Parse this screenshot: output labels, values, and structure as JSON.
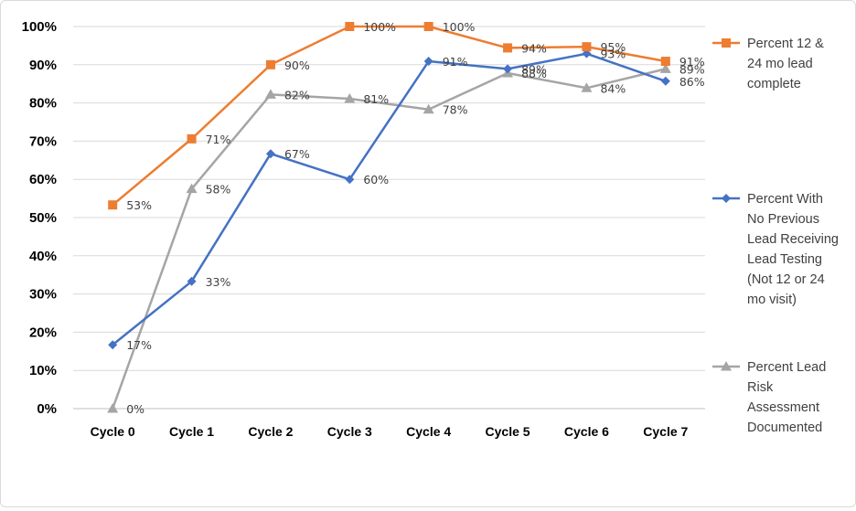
{
  "chart_data": {
    "type": "line",
    "categories": [
      "Cycle 0",
      "Cycle 1",
      "Cycle 2",
      "Cycle 3",
      "Cycle 4",
      "Cycle 5",
      "Cycle 6",
      "Cycle 7"
    ],
    "ylim": [
      0,
      100
    ],
    "yticks": [
      "0%",
      "10%",
      "20%",
      "30%",
      "40%",
      "50%",
      "60%",
      "70%",
      "80%",
      "90%",
      "100%"
    ],
    "grid": true,
    "legend_position": "right",
    "series": [
      {
        "name": "Percent 12 & 24 mo lead complete",
        "legend_lines": [
          "Percent 12 &",
          "24 mo lead",
          "complete"
        ],
        "color": "#ED7D31",
        "marker": "square",
        "values": [
          53.3,
          70.6,
          90,
          100,
          100,
          94.4,
          94.7,
          90.9
        ],
        "labels": [
          "53%",
          "71%",
          "90%",
          "100%",
          "100%",
          "94%",
          "95%",
          "91%"
        ]
      },
      {
        "name": "Percent With No Previous Lead Receiving Lead Testing (Not 12 or 24 mo visit)",
        "legend_lines": [
          "Percent With",
          "No Previous",
          "Lead Receiving",
          "Lead Testing",
          "(Not 12 or 24",
          "mo visit)"
        ],
        "color": "#4472C4",
        "marker": "diamond",
        "values": [
          16.7,
          33.3,
          66.7,
          60,
          90.9,
          88.9,
          92.9,
          85.7
        ],
        "labels": [
          "17%",
          "33%",
          "67%",
          "60%",
          "91%",
          "89%",
          "93%",
          "86%"
        ]
      },
      {
        "name": "Percent Lead Risk Assessment Documented",
        "legend_lines": [
          "Percent Lead",
          "Risk",
          "Assessment",
          "Documented"
        ],
        "color": "#A5A5A5",
        "marker": "triangle",
        "values": [
          0,
          57.5,
          82.2,
          81.1,
          78.3,
          87.8,
          83.9,
          88.9
        ],
        "labels": [
          "0%",
          "58%",
          "82%",
          "81%",
          "78%",
          "88%",
          "84%",
          "89%"
        ]
      }
    ]
  }
}
